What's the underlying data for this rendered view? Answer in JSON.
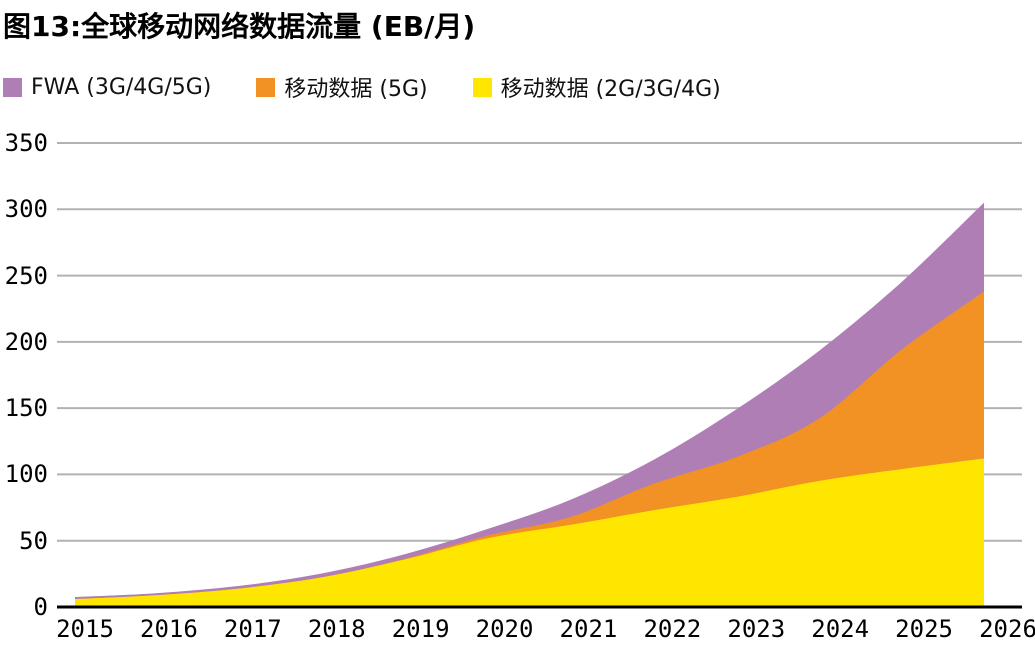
{
  "title": "图13:全球移动网络数据流量 (EB/月)",
  "legend": [
    {
      "label": "FWA (3G/4G/5G)",
      "color": "#af7eb5"
    },
    {
      "label": "移动数据 (5G)",
      "color": "#f29124"
    },
    {
      "label": "移动数据 (2G/3G/4G)",
      "color": "#ffe600"
    }
  ],
  "chart_data": {
    "type": "area",
    "stacked": true,
    "title": "图13:全球移动网络数据流量 (EB/月)",
    "unit": "EB/月",
    "x": [
      "2015",
      "2016",
      "2017",
      "2018",
      "2019",
      "2020",
      "2021",
      "2022",
      "2023",
      "2024",
      "2025",
      "2026"
    ],
    "series": [
      {
        "name": "移动数据 (2G/3G/4G)",
        "color": "#ffe600",
        "values": [
          6,
          9,
          14,
          22.5,
          36,
          52,
          62,
          73,
          83,
          95,
          104,
          112
        ]
      },
      {
        "name": "移动数据 (5G)",
        "color": "#f29124",
        "values": [
          0,
          0,
          0,
          0,
          0.5,
          2,
          6,
          20,
          30,
          47,
          90,
          126
        ]
      },
      {
        "name": "FWA (3G/4G/5G)",
        "color": "#af7eb5",
        "values": [
          1.5,
          1.5,
          2,
          3,
          3.5,
          5,
          13,
          18,
          36,
          51,
          51,
          67
        ]
      }
    ],
    "totals": [
      7.5,
      10.5,
      16,
      25.5,
      40,
      59,
      81,
      111,
      149,
      193,
      245,
      305
    ],
    "ylim": [
      0,
      350
    ],
    "yticks": [
      350,
      300,
      250,
      200,
      150,
      100,
      50,
      0
    ],
    "grid": true,
    "gridline_color": "#b2b2b2",
    "axis_color": "#000000",
    "legend_position": "top-left"
  }
}
